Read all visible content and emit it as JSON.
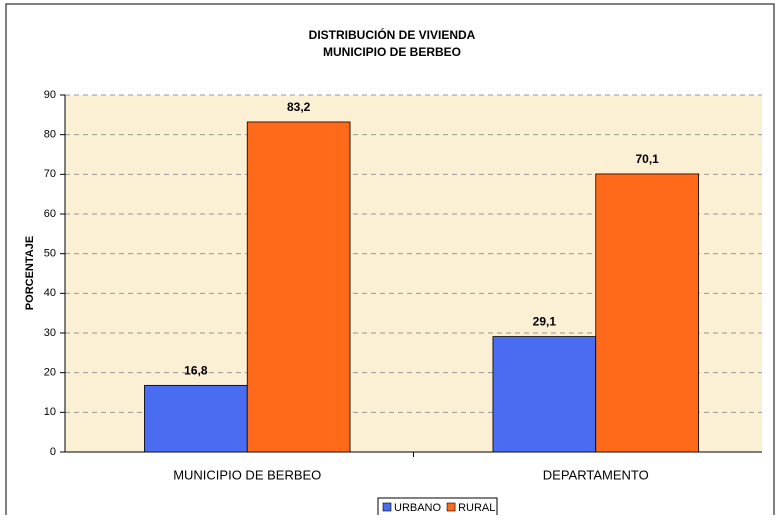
{
  "chart_data": {
    "type": "bar",
    "title": "DISTRIBUCIÓN DE VIVIENDA",
    "subtitle": "MUNICIPIO DE BERBEO",
    "y_label": "PORCENTAJE",
    "categories": [
      "MUNICIPIO DE BERBEO",
      "DEPARTAMENTO"
    ],
    "series": [
      {
        "name": "URBANO",
        "color": "#4a6cf0",
        "values": [
          16.8,
          29.1
        ],
        "value_labels": [
          "16,8",
          "29,1"
        ]
      },
      {
        "name": "RURAL",
        "color": "#ff6a1a",
        "values": [
          83.2,
          70.1
        ],
        "value_labels": [
          "83,2",
          "70,1"
        ]
      }
    ],
    "ylim": [
      0,
      90
    ],
    "yticks": [
      0,
      10,
      20,
      30,
      40,
      50,
      60,
      70,
      80,
      90
    ],
    "grid": true,
    "legend": "bottom"
  }
}
